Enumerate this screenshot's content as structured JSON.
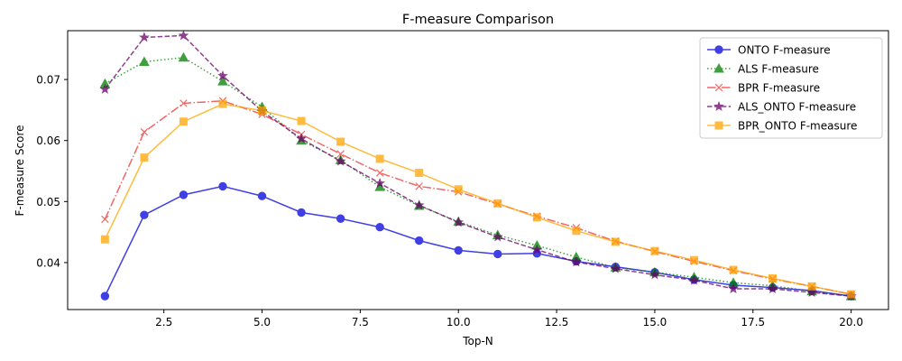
{
  "chart_data": {
    "type": "line",
    "title": "F-measure Comparison",
    "xlabel": "Top-N",
    "ylabel": "F-measure Score",
    "xlim": [
      0.05,
      20.95
    ],
    "ylim": [
      0.0323,
      0.078
    ],
    "xticks": [
      2.5,
      5.0,
      7.5,
      10.0,
      12.5,
      15.0,
      17.5,
      20.0
    ],
    "xtick_labels": [
      "2.5",
      "5.0",
      "7.5",
      "10.0",
      "12.5",
      "15.0",
      "17.5",
      "20.0"
    ],
    "yticks": [
      0.04,
      0.05,
      0.06,
      0.07
    ],
    "ytick_labels": [
      "0.04",
      "0.05",
      "0.06",
      "0.07"
    ],
    "grid": false,
    "legend_position": "top-right",
    "x": [
      1,
      2,
      3,
      4,
      5,
      6,
      7,
      8,
      9,
      10,
      11,
      12,
      13,
      14,
      15,
      16,
      17,
      18,
      19,
      20
    ],
    "series": [
      {
        "name": "ONTO F-measure",
        "color": "#0000dd",
        "marker": "circle",
        "dash": "solid",
        "values": [
          0.0345,
          0.0478,
          0.0511,
          0.0525,
          0.0509,
          0.0482,
          0.0472,
          0.0458,
          0.0436,
          0.042,
          0.0414,
          0.0415,
          0.0402,
          0.0393,
          0.0384,
          0.0372,
          0.0363,
          0.0359,
          0.0354,
          0.0345
        ]
      },
      {
        "name": "ALS F-measure",
        "color": "#008000",
        "marker": "triangle",
        "dash": "dotted",
        "values": [
          0.0693,
          0.0729,
          0.0736,
          0.0697,
          0.0655,
          0.06,
          0.0568,
          0.0524,
          0.0493,
          0.0467,
          0.0445,
          0.0428,
          0.0409,
          0.0392,
          0.0384,
          0.0376,
          0.0367,
          0.0362,
          0.0353,
          0.0345
        ]
      },
      {
        "name": "BPR F-measure",
        "color": "#ee3333",
        "marker": "x",
        "dash": "dashdot",
        "values": [
          0.0471,
          0.0614,
          0.0661,
          0.0665,
          0.0643,
          0.061,
          0.0578,
          0.0547,
          0.0525,
          0.0516,
          0.0496,
          0.0476,
          0.0457,
          0.0435,
          0.0418,
          0.0402,
          0.0387,
          0.0373,
          0.0361,
          0.0348
        ]
      },
      {
        "name": "ALS_ONTO F-measure",
        "color": "#6a006a",
        "marker": "star",
        "dash": "dashed",
        "values": [
          0.0684,
          0.0769,
          0.0772,
          0.0706,
          0.0648,
          0.0603,
          0.0566,
          0.053,
          0.0494,
          0.0466,
          0.0442,
          0.0421,
          0.0401,
          0.039,
          0.038,
          0.0371,
          0.0357,
          0.0357,
          0.0351,
          0.0345
        ]
      },
      {
        "name": "BPR_ONTO F-measure",
        "color": "#ffa500",
        "marker": "square",
        "dash": "solid",
        "values": [
          0.0438,
          0.0572,
          0.0631,
          0.066,
          0.0649,
          0.0632,
          0.0598,
          0.057,
          0.0547,
          0.052,
          0.0497,
          0.0474,
          0.0452,
          0.0434,
          0.0419,
          0.0404,
          0.0388,
          0.0374,
          0.0361,
          0.0348
        ]
      }
    ]
  }
}
